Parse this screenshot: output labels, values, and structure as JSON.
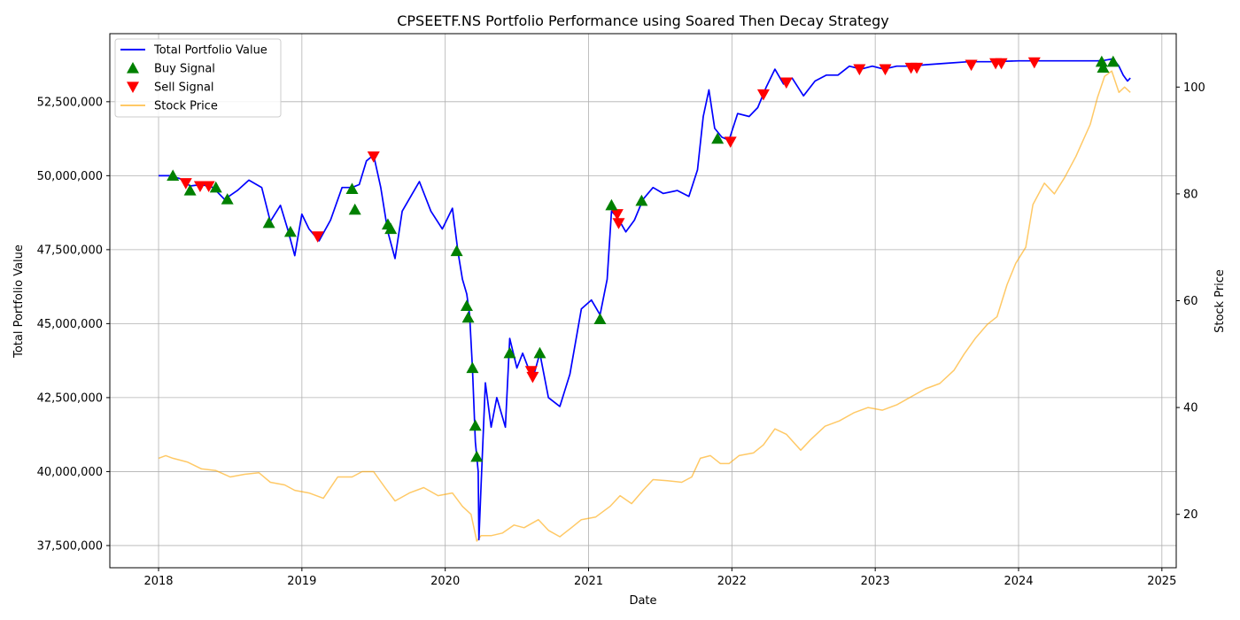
{
  "chart_data": {
    "type": "line",
    "title": "CPSEETF.NS Portfolio Performance using Soared Then Decay Strategy",
    "xlabel": "Date",
    "ylabel": "Total Portfolio Value",
    "ylabel_right": "Stock Price",
    "x_ticks": [
      "2018",
      "2019",
      "2020",
      "2021",
      "2022",
      "2023",
      "2024",
      "2025"
    ],
    "y_ticks_left": [
      "37,500,000",
      "40,000,000",
      "42,500,000",
      "45,000,000",
      "47,500,000",
      "50,000,000",
      "52,500,000"
    ],
    "y_ticks_right": [
      "20",
      "40",
      "60",
      "80",
      "100"
    ],
    "xlim": [
      2017.66,
      2025.1
    ],
    "ylim_left": [
      36750000,
      54800000
    ],
    "ylim_right": [
      10,
      110
    ],
    "grid": true,
    "legend_position": "upper-left",
    "colors": {
      "portfolio": "#0000ff",
      "buy": "#008000",
      "sell": "#ff0000",
      "price": "#ffa500"
    },
    "series": [
      {
        "name": "Total Portfolio Value",
        "axis": "left",
        "points": [
          [
            2018.0,
            50000000
          ],
          [
            2018.08,
            50000000
          ],
          [
            2018.15,
            49900000
          ],
          [
            2018.22,
            49650000
          ],
          [
            2018.3,
            49700000
          ],
          [
            2018.38,
            49600000
          ],
          [
            2018.46,
            49200000
          ],
          [
            2018.55,
            49500000
          ],
          [
            2018.63,
            49850000
          ],
          [
            2018.72,
            49600000
          ],
          [
            2018.78,
            48450000
          ],
          [
            2018.85,
            49000000
          ],
          [
            2018.9,
            48200000
          ],
          [
            2018.95,
            47300000
          ],
          [
            2019.0,
            48700000
          ],
          [
            2019.05,
            48200000
          ],
          [
            2019.12,
            47800000
          ],
          [
            2019.2,
            48500000
          ],
          [
            2019.28,
            49600000
          ],
          [
            2019.35,
            49600000
          ],
          [
            2019.4,
            49700000
          ],
          [
            2019.45,
            50500000
          ],
          [
            2019.5,
            50700000
          ],
          [
            2019.55,
            49600000
          ],
          [
            2019.6,
            48100000
          ],
          [
            2019.65,
            47200000
          ],
          [
            2019.7,
            48800000
          ],
          [
            2019.76,
            49300000
          ],
          [
            2019.82,
            49800000
          ],
          [
            2019.9,
            48800000
          ],
          [
            2019.98,
            48200000
          ],
          [
            2020.05,
            48900000
          ],
          [
            2020.09,
            47400000
          ],
          [
            2020.12,
            46500000
          ],
          [
            2020.15,
            46000000
          ],
          [
            2020.17,
            45300000
          ],
          [
            2020.19,
            43500000
          ],
          [
            2020.21,
            41000000
          ],
          [
            2020.23,
            40000000
          ],
          [
            2020.235,
            37700000
          ],
          [
            2020.25,
            39500000
          ],
          [
            2020.28,
            43000000
          ],
          [
            2020.32,
            41500000
          ],
          [
            2020.36,
            42500000
          ],
          [
            2020.42,
            41500000
          ],
          [
            2020.45,
            44500000
          ],
          [
            2020.5,
            43500000
          ],
          [
            2020.54,
            44000000
          ],
          [
            2020.58,
            43500000
          ],
          [
            2020.62,
            43300000
          ],
          [
            2020.66,
            44000000
          ],
          [
            2020.72,
            42500000
          ],
          [
            2020.8,
            42200000
          ],
          [
            2020.87,
            43300000
          ],
          [
            2020.95,
            45500000
          ],
          [
            2021.02,
            45800000
          ],
          [
            2021.08,
            45300000
          ],
          [
            2021.13,
            46500000
          ],
          [
            2021.16,
            48800000
          ],
          [
            2021.2,
            48600000
          ],
          [
            2021.26,
            48100000
          ],
          [
            2021.32,
            48500000
          ],
          [
            2021.38,
            49200000
          ],
          [
            2021.45,
            49600000
          ],
          [
            2021.52,
            49400000
          ],
          [
            2021.62,
            49500000
          ],
          [
            2021.7,
            49300000
          ],
          [
            2021.76,
            50200000
          ],
          [
            2021.8,
            52000000
          ],
          [
            2021.84,
            52900000
          ],
          [
            2021.88,
            51600000
          ],
          [
            2021.93,
            51300000
          ],
          [
            2021.98,
            51200000
          ],
          [
            2022.04,
            52100000
          ],
          [
            2022.12,
            52000000
          ],
          [
            2022.18,
            52300000
          ],
          [
            2022.24,
            53000000
          ],
          [
            2022.3,
            53600000
          ],
          [
            2022.36,
            53100000
          ],
          [
            2022.42,
            53300000
          ],
          [
            2022.5,
            52700000
          ],
          [
            2022.58,
            53200000
          ],
          [
            2022.66,
            53400000
          ],
          [
            2022.74,
            53400000
          ],
          [
            2022.82,
            53700000
          ],
          [
            2022.9,
            53600000
          ],
          [
            2022.98,
            53700000
          ],
          [
            2023.06,
            53600000
          ],
          [
            2023.15,
            53700000
          ],
          [
            2023.25,
            53700000
          ],
          [
            2023.35,
            53750000
          ],
          [
            2023.5,
            53800000
          ],
          [
            2023.65,
            53850000
          ],
          [
            2023.8,
            53850000
          ],
          [
            2024.0,
            53880000
          ],
          [
            2024.2,
            53880000
          ],
          [
            2024.4,
            53880000
          ],
          [
            2024.55,
            53880000
          ],
          [
            2024.6,
            53900000
          ],
          [
            2024.66,
            53950000
          ],
          [
            2024.7,
            53700000
          ],
          [
            2024.73,
            53400000
          ],
          [
            2024.76,
            53200000
          ],
          [
            2024.78,
            53300000
          ]
        ]
      },
      {
        "name": "Stock Price",
        "axis": "right",
        "points": [
          [
            2018.0,
            30.5
          ],
          [
            2018.05,
            31
          ],
          [
            2018.1,
            30.5
          ],
          [
            2018.2,
            29.8
          ],
          [
            2018.3,
            28.5
          ],
          [
            2018.4,
            28.2
          ],
          [
            2018.5,
            27
          ],
          [
            2018.6,
            27.5
          ],
          [
            2018.7,
            27.8
          ],
          [
            2018.78,
            26
          ],
          [
            2018.88,
            25.5
          ],
          [
            2018.95,
            24.5
          ],
          [
            2019.05,
            24
          ],
          [
            2019.15,
            23
          ],
          [
            2019.25,
            27
          ],
          [
            2019.35,
            27
          ],
          [
            2019.42,
            28
          ],
          [
            2019.5,
            28
          ],
          [
            2019.58,
            25
          ],
          [
            2019.65,
            22.5
          ],
          [
            2019.75,
            24
          ],
          [
            2019.85,
            25
          ],
          [
            2019.95,
            23.5
          ],
          [
            2020.05,
            24
          ],
          [
            2020.12,
            21.5
          ],
          [
            2020.18,
            20
          ],
          [
            2020.22,
            15
          ],
          [
            2020.25,
            16
          ],
          [
            2020.32,
            16
          ],
          [
            2020.4,
            16.5
          ],
          [
            2020.48,
            18
          ],
          [
            2020.55,
            17.5
          ],
          [
            2020.65,
            19
          ],
          [
            2020.72,
            17
          ],
          [
            2020.8,
            15.8
          ],
          [
            2020.88,
            17.5
          ],
          [
            2020.95,
            19
          ],
          [
            2021.05,
            19.5
          ],
          [
            2021.15,
            21.5
          ],
          [
            2021.22,
            23.5
          ],
          [
            2021.3,
            22
          ],
          [
            2021.38,
            24.5
          ],
          [
            2021.45,
            26.5
          ],
          [
            2021.55,
            26.3
          ],
          [
            2021.65,
            26
          ],
          [
            2021.72,
            27
          ],
          [
            2021.78,
            30.5
          ],
          [
            2021.85,
            31
          ],
          [
            2021.92,
            29.5
          ],
          [
            2021.98,
            29.5
          ],
          [
            2022.05,
            31
          ],
          [
            2022.15,
            31.5
          ],
          [
            2022.22,
            33
          ],
          [
            2022.3,
            36
          ],
          [
            2022.38,
            35
          ],
          [
            2022.48,
            32
          ],
          [
            2022.55,
            34
          ],
          [
            2022.65,
            36.5
          ],
          [
            2022.75,
            37.5
          ],
          [
            2022.85,
            39
          ],
          [
            2022.95,
            40
          ],
          [
            2023.05,
            39.5
          ],
          [
            2023.15,
            40.5
          ],
          [
            2023.25,
            42
          ],
          [
            2023.35,
            43.5
          ],
          [
            2023.45,
            44.5
          ],
          [
            2023.55,
            47
          ],
          [
            2023.62,
            50
          ],
          [
            2023.7,
            53
          ],
          [
            2023.78,
            55.5
          ],
          [
            2023.85,
            57
          ],
          [
            2023.92,
            63
          ],
          [
            2023.98,
            67
          ],
          [
            2024.05,
            70
          ],
          [
            2024.1,
            78
          ],
          [
            2024.18,
            82
          ],
          [
            2024.25,
            80
          ],
          [
            2024.32,
            83
          ],
          [
            2024.4,
            87
          ],
          [
            2024.45,
            90
          ],
          [
            2024.5,
            93
          ],
          [
            2024.55,
            98
          ],
          [
            2024.6,
            102
          ],
          [
            2024.65,
            103
          ],
          [
            2024.7,
            99
          ],
          [
            2024.74,
            100
          ],
          [
            2024.78,
            99
          ]
        ]
      }
    ],
    "buy_signals": {
      "name": "Buy Signal",
      "points": [
        [
          2018.1,
          50000000
        ],
        [
          2018.22,
          49500000
        ],
        [
          2018.4,
          49600000
        ],
        [
          2018.48,
          49200000
        ],
        [
          2018.77,
          48400000
        ],
        [
          2018.92,
          48100000
        ],
        [
          2019.35,
          49550000
        ],
        [
          2019.37,
          48850000
        ],
        [
          2019.6,
          48350000
        ],
        [
          2019.62,
          48200000
        ],
        [
          2020.08,
          47450000
        ],
        [
          2020.15,
          45600000
        ],
        [
          2020.16,
          45200000
        ],
        [
          2020.19,
          43500000
        ],
        [
          2020.21,
          41550000
        ],
        [
          2020.22,
          40500000
        ],
        [
          2020.45,
          44000000
        ],
        [
          2020.66,
          44000000
        ],
        [
          2021.08,
          45150000
        ],
        [
          2021.16,
          49000000
        ],
        [
          2021.37,
          49150000
        ],
        [
          2021.9,
          51250000
        ],
        [
          2024.58,
          53850000
        ],
        [
          2024.59,
          53650000
        ],
        [
          2024.66,
          53850000
        ]
      ]
    },
    "sell_signals": {
      "name": "Sell Signal",
      "points": [
        [
          2018.19,
          49750000
        ],
        [
          2018.29,
          49650000
        ],
        [
          2018.35,
          49650000
        ],
        [
          2019.11,
          47950000
        ],
        [
          2019.5,
          50650000
        ],
        [
          2020.6,
          43400000
        ],
        [
          2020.61,
          43200000
        ],
        [
          2021.2,
          48700000
        ],
        [
          2021.21,
          48400000
        ],
        [
          2021.99,
          51150000
        ],
        [
          2022.22,
          52750000
        ],
        [
          2022.38,
          53150000
        ],
        [
          2022.89,
          53600000
        ],
        [
          2023.07,
          53600000
        ],
        [
          2023.25,
          53650000
        ],
        [
          2023.29,
          53650000
        ],
        [
          2023.67,
          53750000
        ],
        [
          2023.84,
          53800000
        ],
        [
          2023.88,
          53800000
        ],
        [
          2024.11,
          53830000
        ]
      ]
    },
    "legend": [
      {
        "label": "Total Portfolio Value",
        "kind": "line",
        "color": "#0000ff"
      },
      {
        "label": "Buy Signal",
        "kind": "up-triangle",
        "color": "#008000"
      },
      {
        "label": "Sell Signal",
        "kind": "down-triangle",
        "color": "#ff0000"
      },
      {
        "label": "Stock Price",
        "kind": "line",
        "color": "#ffa500"
      }
    ]
  }
}
